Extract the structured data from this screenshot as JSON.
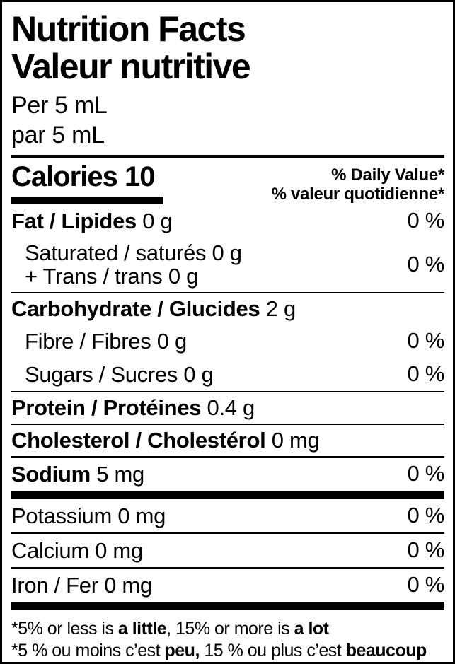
{
  "colors": {
    "ink": "#000000",
    "paper": "#ffffff"
  },
  "label": {
    "title_en": "Nutrition Facts",
    "title_fr": "Valeur nutritive",
    "serving_en": "Per 5 mL",
    "serving_fr": "par 5 mL"
  },
  "calories": {
    "text": "Calories 10"
  },
  "dv_header": {
    "en": "% Daily Value*",
    "fr": "% valeur quotidienne*"
  },
  "rows": [
    {
      "id": "fat",
      "indent": false,
      "sep": "none",
      "dv": "0 %",
      "lines": [
        [
          {
            "t": "Fat / Lipides",
            "b": true
          },
          {
            "t": " 0 g",
            "b": false
          }
        ]
      ]
    },
    {
      "id": "saturated-trans",
      "indent": true,
      "sep": "thin",
      "dv": "0 %",
      "lines": [
        [
          {
            "t": "Saturated / saturés 0 g",
            "b": false
          }
        ],
        [
          {
            "t": "+ Trans / trans 0 g",
            "b": false
          }
        ]
      ]
    },
    {
      "id": "carbohydrate",
      "indent": false,
      "sep": "none",
      "dv": "",
      "lines": [
        [
          {
            "t": "Carbohydrate / Glucides",
            "b": true
          },
          {
            "t": " 2 g",
            "b": false
          }
        ]
      ]
    },
    {
      "id": "fibre",
      "indent": true,
      "sep": "none",
      "dv": "0 %",
      "lines": [
        [
          {
            "t": "Fibre / Fibres 0 g",
            "b": false
          }
        ]
      ]
    },
    {
      "id": "sugars",
      "indent": true,
      "sep": "thin",
      "dv": "0 %",
      "lines": [
        [
          {
            "t": "Sugars / Sucres 0 g",
            "b": false
          }
        ]
      ]
    },
    {
      "id": "protein",
      "indent": false,
      "sep": "thin",
      "dv": "",
      "lines": [
        [
          {
            "t": "Protein / Protéines",
            "b": true
          },
          {
            "t": " 0.4 g",
            "b": false
          }
        ]
      ]
    },
    {
      "id": "cholesterol",
      "indent": false,
      "sep": "thin",
      "dv": "",
      "lines": [
        [
          {
            "t": "Cholesterol / Cholestérol",
            "b": true
          },
          {
            "t": " 0 mg",
            "b": false
          }
        ]
      ]
    },
    {
      "id": "sodium",
      "indent": false,
      "sep": "thick",
      "dv": "0 %",
      "lines": [
        [
          {
            "t": "Sodium",
            "b": true
          },
          {
            "t": " 5 mg",
            "b": false
          }
        ]
      ]
    },
    {
      "id": "potassium",
      "indent": false,
      "sep": "thin",
      "dv": "0 %",
      "lines": [
        [
          {
            "t": "Potassium 0 mg",
            "b": false
          }
        ]
      ]
    },
    {
      "id": "calcium",
      "indent": false,
      "sep": "thin",
      "dv": "0 %",
      "lines": [
        [
          {
            "t": "Calcium 0 mg",
            "b": false
          }
        ]
      ]
    },
    {
      "id": "iron",
      "indent": false,
      "sep": "thick",
      "dv": "0 %",
      "lines": [
        [
          {
            "t": "Iron / Fer 0 mg",
            "b": false
          }
        ]
      ]
    }
  ],
  "footnotes": [
    {
      "id": "footnote-en",
      "segments": [
        {
          "t": "*5% or less is ",
          "b": false
        },
        {
          "t": "a little",
          "b": true
        },
        {
          "t": ", 15% or more is ",
          "b": false
        },
        {
          "t": "a lot",
          "b": true
        }
      ]
    },
    {
      "id": "footnote-fr",
      "segments": [
        {
          "t": "*5 % ou moins c’est ",
          "b": false
        },
        {
          "t": "peu,",
          "b": true
        },
        {
          "t": " 15 % ou plus c’est ",
          "b": false
        },
        {
          "t": "beaucoup",
          "b": true
        }
      ]
    }
  ]
}
